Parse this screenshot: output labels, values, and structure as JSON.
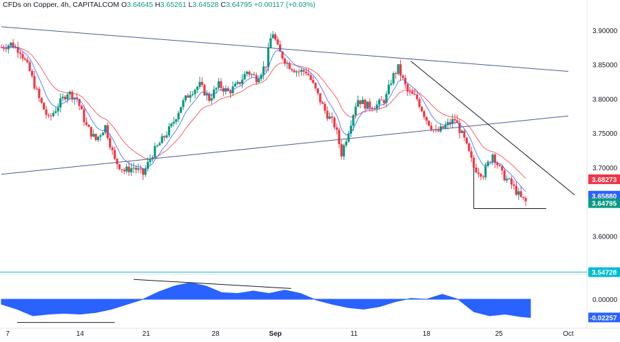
{
  "header": {
    "symbol": "CFDs on Copper, 4h, CAPITALCOM",
    "o_label": "O",
    "o_value": "3.64645",
    "h_label": "H",
    "h_value": "3.65261",
    "l_label": "L",
    "l_value": "3.64528",
    "c_label": "C",
    "c_value": "3.64795",
    "change": "+0.00117 (+0.03%)"
  },
  "colors": {
    "up": "#089981",
    "down": "#f23645",
    "ema_fast": "#2962ff",
    "ema_slow": "#f23645",
    "trendline": "#4a5c8c",
    "oscillator": "#2962ff",
    "support": "#00bcd4",
    "axis_text": "#131722"
  },
  "chart_data": [
    {
      "type": "candlestick",
      "title": "CFDs on Copper, 4h, CAPITALCOM",
      "ylim": [
        3.55,
        3.93
      ],
      "y_ticks": [
        "3.90000",
        "3.85000",
        "3.80000",
        "3.75000",
        "3.70000",
        "3.60000"
      ],
      "x_ticks": [
        "7",
        "14",
        "21",
        "28",
        "Sep",
        "11",
        "18",
        "25",
        "Oct"
      ],
      "series_points": [
        [
          0,
          3.875
        ],
        [
          3,
          3.88
        ],
        [
          6,
          3.87
        ],
        [
          9,
          3.84
        ],
        [
          12,
          3.8
        ],
        [
          15,
          3.77
        ],
        [
          18,
          3.79
        ],
        [
          21,
          3.81
        ],
        [
          24,
          3.8
        ],
        [
          27,
          3.76
        ],
        [
          30,
          3.74
        ],
        [
          33,
          3.76
        ],
        [
          36,
          3.71
        ],
        [
          39,
          3.695
        ],
        [
          42,
          3.7
        ],
        [
          45,
          3.69
        ],
        [
          48,
          3.72
        ],
        [
          51,
          3.74
        ],
        [
          54,
          3.76
        ],
        [
          57,
          3.79
        ],
        [
          60,
          3.81
        ],
        [
          63,
          3.82
        ],
        [
          66,
          3.8
        ],
        [
          69,
          3.82
        ],
        [
          72,
          3.81
        ],
        [
          75,
          3.82
        ],
        [
          78,
          3.84
        ],
        [
          81,
          3.83
        ],
        [
          84,
          3.85
        ],
        [
          86,
          3.9
        ],
        [
          88,
          3.87
        ],
        [
          91,
          3.85
        ],
        [
          94,
          3.84
        ],
        [
          97,
          3.84
        ],
        [
          100,
          3.81
        ],
        [
          103,
          3.78
        ],
        [
          106,
          3.76
        ],
        [
          108,
          3.72
        ],
        [
          110,
          3.75
        ],
        [
          113,
          3.8
        ],
        [
          116,
          3.79
        ],
        [
          119,
          3.79
        ],
        [
          122,
          3.8
        ],
        [
          124,
          3.83
        ],
        [
          126,
          3.845
        ],
        [
          129,
          3.81
        ],
        [
          132,
          3.8
        ],
        [
          135,
          3.77
        ],
        [
          138,
          3.75
        ],
        [
          141,
          3.76
        ],
        [
          144,
          3.77
        ],
        [
          147,
          3.74
        ],
        [
          150,
          3.7
        ],
        [
          153,
          3.69
        ],
        [
          156,
          3.72
        ],
        [
          159,
          3.69
        ],
        [
          162,
          3.675
        ],
        [
          165,
          3.655
        ],
        [
          167,
          3.648
        ]
      ],
      "ema_fast_last": "3.65880",
      "ema_slow_last": "3.68273",
      "last_price": "3.64795",
      "support_level": "3.54728",
      "trendline_descending_upper": [
        [
          0,
          3.905
        ],
        [
          180,
          3.84
        ]
      ],
      "trendline_ascending": [
        [
          0,
          3.69
        ],
        [
          180,
          3.775
        ]
      ],
      "trendline_descending_short": [
        [
          130,
          3.855
        ],
        [
          182,
          3.66
        ]
      ],
      "support_segment": [
        [
          150,
          3.64
        ],
        [
          173,
          3.64
        ]
      ]
    },
    {
      "type": "area",
      "title": "",
      "ylim": [
        -0.03,
        0.025
      ],
      "y_ticks": [
        "0.00000"
      ],
      "last_value_label": "-0.02257",
      "x": [
        0,
        5,
        10,
        15,
        20,
        25,
        30,
        35,
        40,
        45,
        50,
        55,
        60,
        65,
        70,
        75,
        80,
        85,
        90,
        95,
        100,
        105,
        110,
        115,
        120,
        125,
        130,
        135,
        140,
        145,
        150,
        155,
        160,
        165,
        168
      ],
      "values": [
        -0.006,
        -0.012,
        -0.02,
        -0.018,
        -0.017,
        -0.018,
        -0.016,
        -0.012,
        -0.006,
        0.0,
        0.009,
        0.016,
        0.02,
        0.016,
        0.008,
        0.007,
        0.01,
        0.007,
        0.011,
        0.007,
        -0.001,
        -0.006,
        -0.01,
        -0.012,
        -0.009,
        -0.003,
        0.001,
        0.0,
        0.006,
        0.0,
        -0.015,
        -0.02,
        -0.018,
        -0.021,
        -0.022
      ]
    }
  ]
}
